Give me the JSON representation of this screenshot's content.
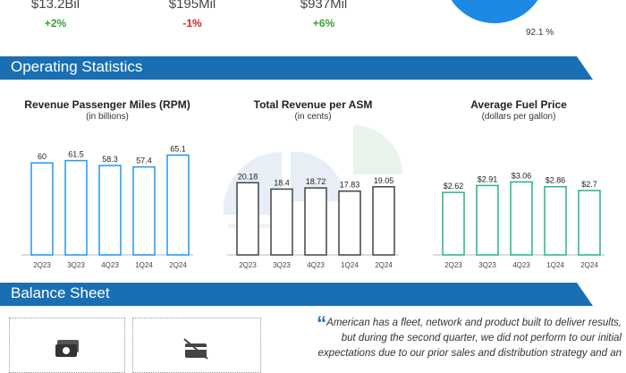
{
  "colors": {
    "banner": "#1a6fb3",
    "positive": "#3aa335",
    "negative": "#cc2a2a",
    "rpm_bar": "#2196f3",
    "casm_bar": "#444444",
    "fuel_bar": "#26b57f",
    "pie": "#1e88e5"
  },
  "kpis": [
    {
      "value": "$13.2Bil",
      "change": "+2%"
    },
    {
      "value": "$195Mil",
      "change": "-1%"
    },
    {
      "value": "$937Mil",
      "change": "+6%"
    }
  ],
  "pie_label": "92.1 %",
  "sections": {
    "operating": "Operating Statistics",
    "balance": "Balance Sheet"
  },
  "quote": {
    "mark": "“",
    "line1": "American has a fleet, network and product built to deliver results,",
    "line2": "but during the second quarter, we did not perform to our initial",
    "line3": "expectations due to our prior sales and distribution strategy and an"
  },
  "icons": [
    "money-icon",
    "no-card-icon"
  ],
  "chart_data": [
    {
      "type": "bar",
      "title": "Revenue Passenger Miles (RPM)",
      "subtitle": "(in billions)",
      "categories": [
        "2Q23",
        "3Q23",
        "4Q23",
        "1Q24",
        "2Q24"
      ],
      "values": [
        60,
        61.5,
        58.3,
        57.4,
        65.1
      ],
      "labels": [
        "60",
        "61.5",
        "58.3",
        "57.4",
        "65.1"
      ],
      "ylim": [
        0,
        70
      ]
    },
    {
      "type": "bar",
      "title": "Total Revenue per ASM",
      "subtitle": "(in cents)",
      "categories": [
        "2Q23",
        "3Q23",
        "4Q23",
        "1Q24",
        "2Q24"
      ],
      "values": [
        20.18,
        18.4,
        18.72,
        17.83,
        19.05
      ],
      "labels": [
        "20.18",
        "18.4",
        "18.72",
        "17.83",
        "19.05"
      ],
      "ylim": [
        0,
        30
      ]
    },
    {
      "type": "bar",
      "title": "Average Fuel Price",
      "subtitle": "(dollars per gallon)",
      "categories": [
        "2Q23",
        "3Q23",
        "4Q23",
        "1Q24",
        "2Q24"
      ],
      "values": [
        2.62,
        2.91,
        3.06,
        2.86,
        2.7
      ],
      "labels": [
        "$2.62",
        "$2.91",
        "$3.06",
        "$2.86",
        "$2.7"
      ],
      "ylim": [
        0,
        4.5
      ]
    }
  ]
}
